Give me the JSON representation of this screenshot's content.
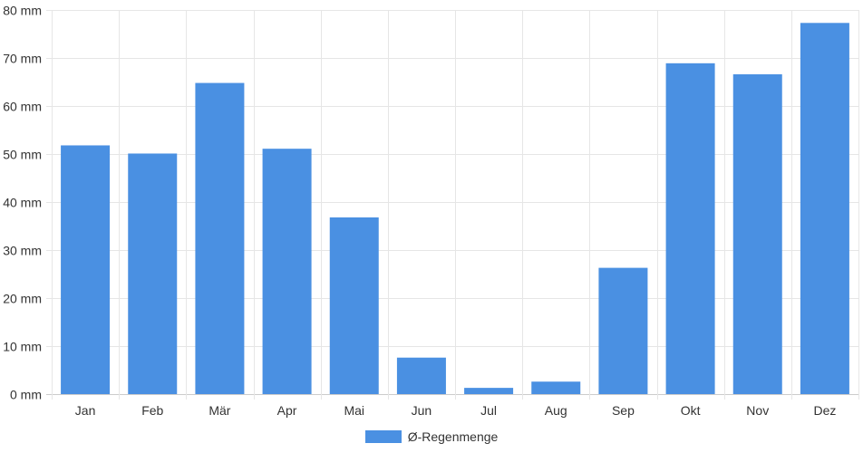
{
  "chart_data": {
    "type": "bar",
    "categories": [
      "Jan",
      "Feb",
      "Mär",
      "Apr",
      "Mai",
      "Jun",
      "Jul",
      "Aug",
      "Sep",
      "Okt",
      "Nov",
      "Dez"
    ],
    "series": [
      {
        "name": "Ø-Regenmenge",
        "color": "#4a90e2",
        "values": [
          51.8,
          50.1,
          64.8,
          51.1,
          36.8,
          7.6,
          1.3,
          2.6,
          26.3,
          68.9,
          66.6,
          77.3
        ]
      }
    ],
    "ylim": [
      0,
      80
    ],
    "yticks": [
      "0 mm",
      "10 mm",
      "20 mm",
      "30 mm",
      "40 mm",
      "50 mm",
      "60 mm",
      "70 mm",
      "80 mm"
    ],
    "grid": true,
    "legend_position": "bottom"
  }
}
